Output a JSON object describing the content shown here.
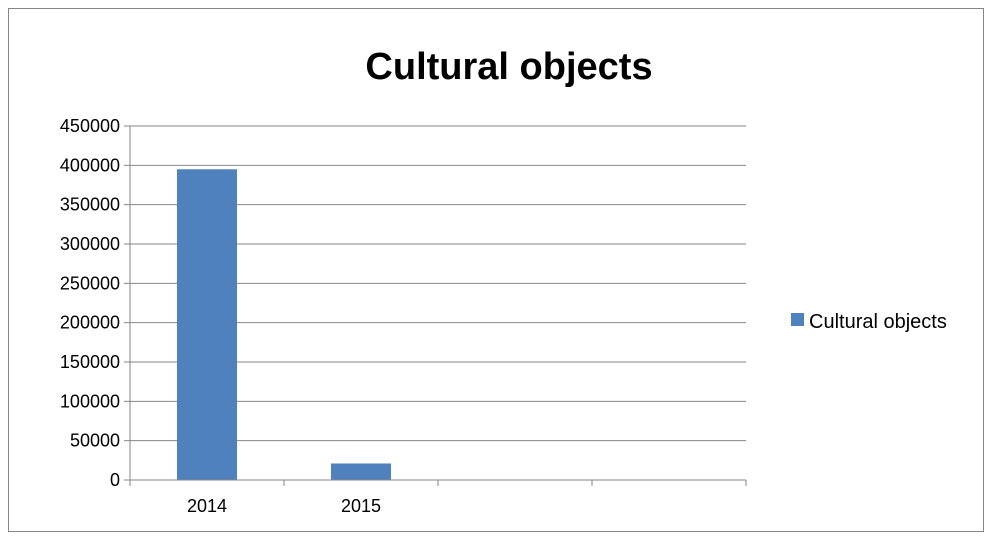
{
  "chart_data": {
    "type": "bar",
    "title": "Cultural objects",
    "xlabel": "",
    "ylabel": "",
    "categories": [
      "2014",
      "2015",
      "",
      ""
    ],
    "series": [
      {
        "name": "Cultural objects",
        "values": [
          395000,
          21000,
          null,
          null
        ],
        "color": "#4F81BD"
      }
    ],
    "ylim": [
      0,
      450000
    ],
    "ytick_step": 50000,
    "grid": true,
    "legend": "right"
  }
}
